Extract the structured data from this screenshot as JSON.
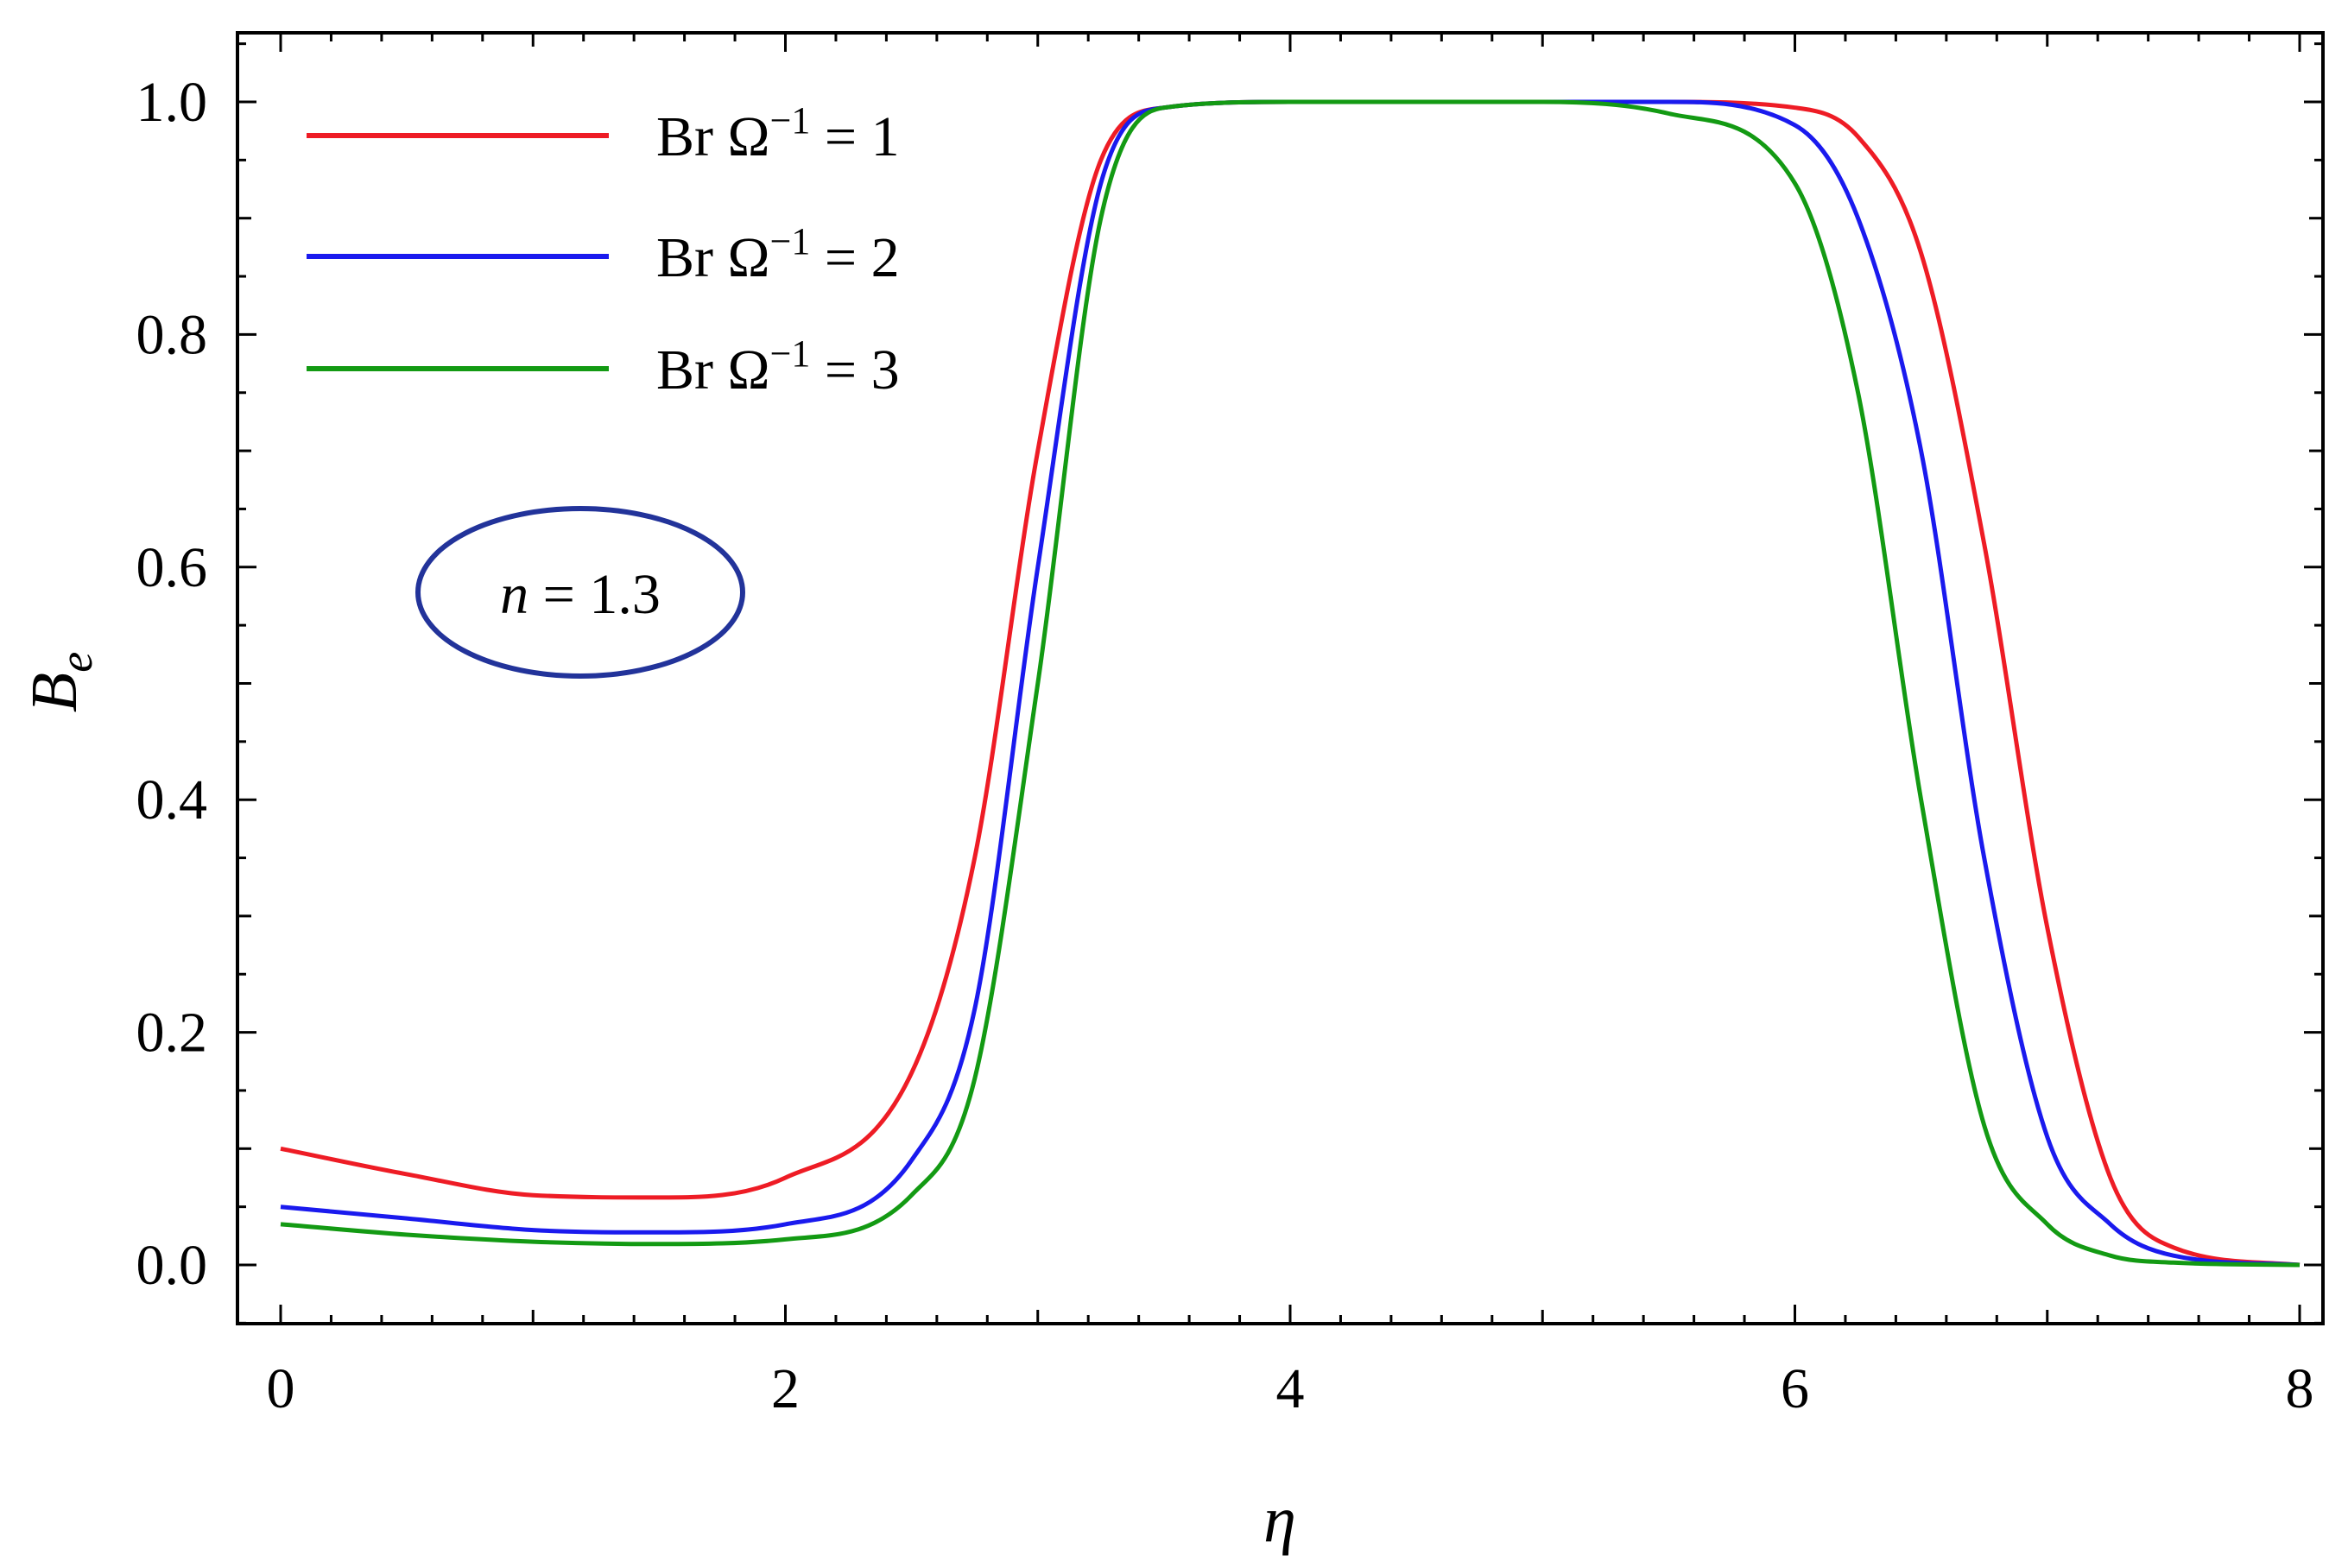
{
  "chart_data": {
    "type": "line",
    "xlabel": "η",
    "ylabel_main": "B",
    "ylabel_sub": "e",
    "xlim": [
      0,
      8
    ],
    "ylim": [
      -0.055,
      1.05
    ],
    "xticks": [
      0,
      2,
      4,
      6,
      8
    ],
    "xtick_labels": [
      "0",
      "2",
      "4",
      "6",
      "8"
    ],
    "yticks": [
      0.0,
      0.2,
      0.4,
      0.6,
      0.8,
      1.0
    ],
    "ytick_labels": [
      "0.0",
      "0.2",
      "0.4",
      "0.6",
      "0.8",
      "1.0"
    ],
    "grid": false,
    "frame": true,
    "legend_position": "top-left",
    "annotation": {
      "italic": "n",
      "text": " = 1.3",
      "style": "ellipse",
      "color": "#22339a"
    },
    "x": [
      0,
      0.5,
      1.0,
      1.5,
      2.0,
      2.5,
      2.75,
      3.0,
      3.25,
      3.5,
      4.0,
      5.0,
      5.5,
      6.0,
      6.25,
      6.5,
      6.75,
      7.0,
      7.25,
      7.5,
      8.0
    ],
    "series": [
      {
        "name": "Br Ω",
        "name_sup": "−1",
        "name_suffix": " = 1",
        "color": "#ee1c25",
        "values": [
          0.1,
          0.078,
          0.06,
          0.058,
          0.075,
          0.165,
          0.35,
          0.7,
          0.95,
          0.995,
          1.0,
          1.0,
          1.0,
          0.995,
          0.97,
          0.87,
          0.62,
          0.29,
          0.075,
          0.015,
          0.0
        ]
      },
      {
        "name": "Br Ω",
        "name_sup": "−1",
        "name_suffix": " = 2",
        "color": "#1a1aee",
        "values": [
          0.05,
          0.04,
          0.03,
          0.028,
          0.035,
          0.09,
          0.22,
          0.6,
          0.93,
          0.995,
          1.0,
          1.0,
          1.0,
          0.98,
          0.9,
          0.7,
          0.35,
          0.11,
          0.035,
          0.008,
          0.0
        ]
      },
      {
        "name": "Br Ω",
        "name_sup": "−1",
        "name_suffix": " = 3",
        "color": "#139a13",
        "values": [
          0.035,
          0.026,
          0.02,
          0.018,
          0.022,
          0.06,
          0.16,
          0.5,
          0.9,
          0.995,
          1.0,
          1.0,
          0.99,
          0.93,
          0.75,
          0.4,
          0.12,
          0.035,
          0.008,
          0.002,
          0.0
        ]
      }
    ]
  }
}
